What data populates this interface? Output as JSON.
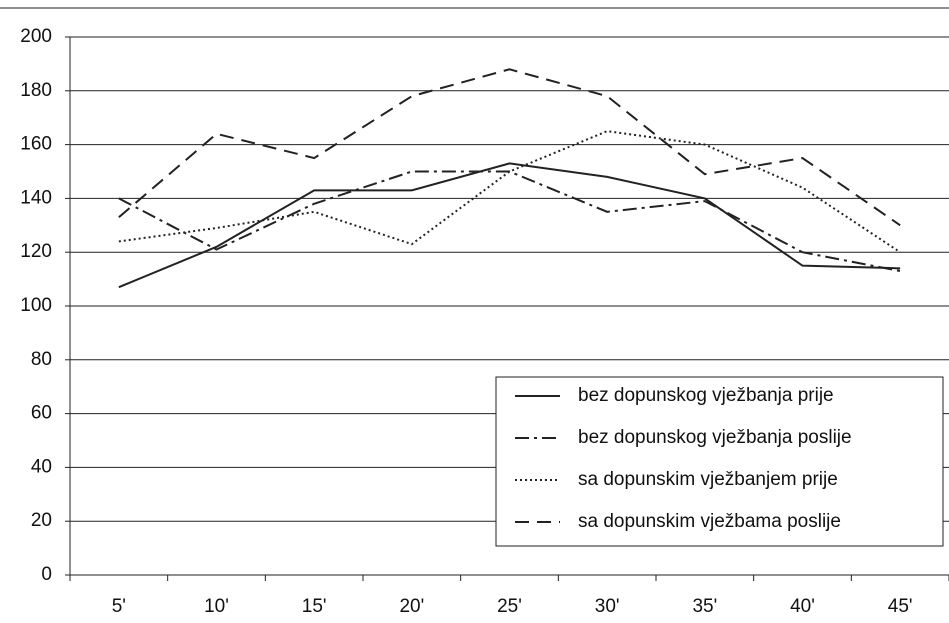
{
  "chart_data": {
    "type": "line",
    "categories": [
      "5'",
      "10'",
      "15'",
      "20'",
      "25'",
      "30'",
      "35'",
      "40'",
      "45'"
    ],
    "series": [
      {
        "name": "bez dopunskog vježbanja prije",
        "color": "#222222",
        "style": "solid",
        "values": [
          107,
          122,
          143,
          143,
          153,
          148,
          140,
          115,
          114
        ]
      },
      {
        "name": "bez dopunskog vježbanja poslije",
        "color": "#222222",
        "style": "dashdot",
        "values": [
          140,
          121,
          138,
          150,
          150,
          135,
          139,
          120,
          113
        ]
      },
      {
        "name": "sa dopunskim vježbanjem prije",
        "color": "#222222",
        "style": "dotted",
        "values": [
          124,
          129,
          135,
          123,
          150,
          165,
          160,
          144,
          120
        ]
      },
      {
        "name": "sa dopunskim vježbama poslije",
        "color": "#222222",
        "style": "dashed",
        "values": [
          133,
          164,
          155,
          178,
          188,
          178,
          149,
          155,
          130
        ]
      }
    ],
    "ylim": [
      0,
      200
    ],
    "yticks": [
      0,
      20,
      40,
      60,
      80,
      100,
      120,
      140,
      160,
      180,
      200
    ],
    "grid": true,
    "legend": "lower right"
  }
}
